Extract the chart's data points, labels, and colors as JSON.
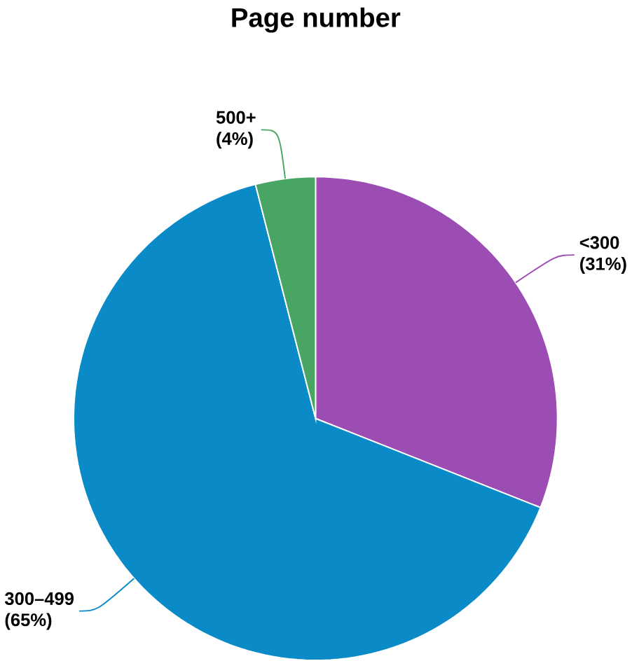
{
  "chart_data": {
    "type": "pie",
    "title": "Page number",
    "categories": [
      "<300",
      "300–499",
      "500+"
    ],
    "values": [
      31,
      65,
      4
    ],
    "colors": [
      "#9b4db3",
      "#0a8bc7",
      "#48a564"
    ],
    "value_labels": [
      "(31%)",
      "(65%)",
      "(4%)"
    ]
  }
}
